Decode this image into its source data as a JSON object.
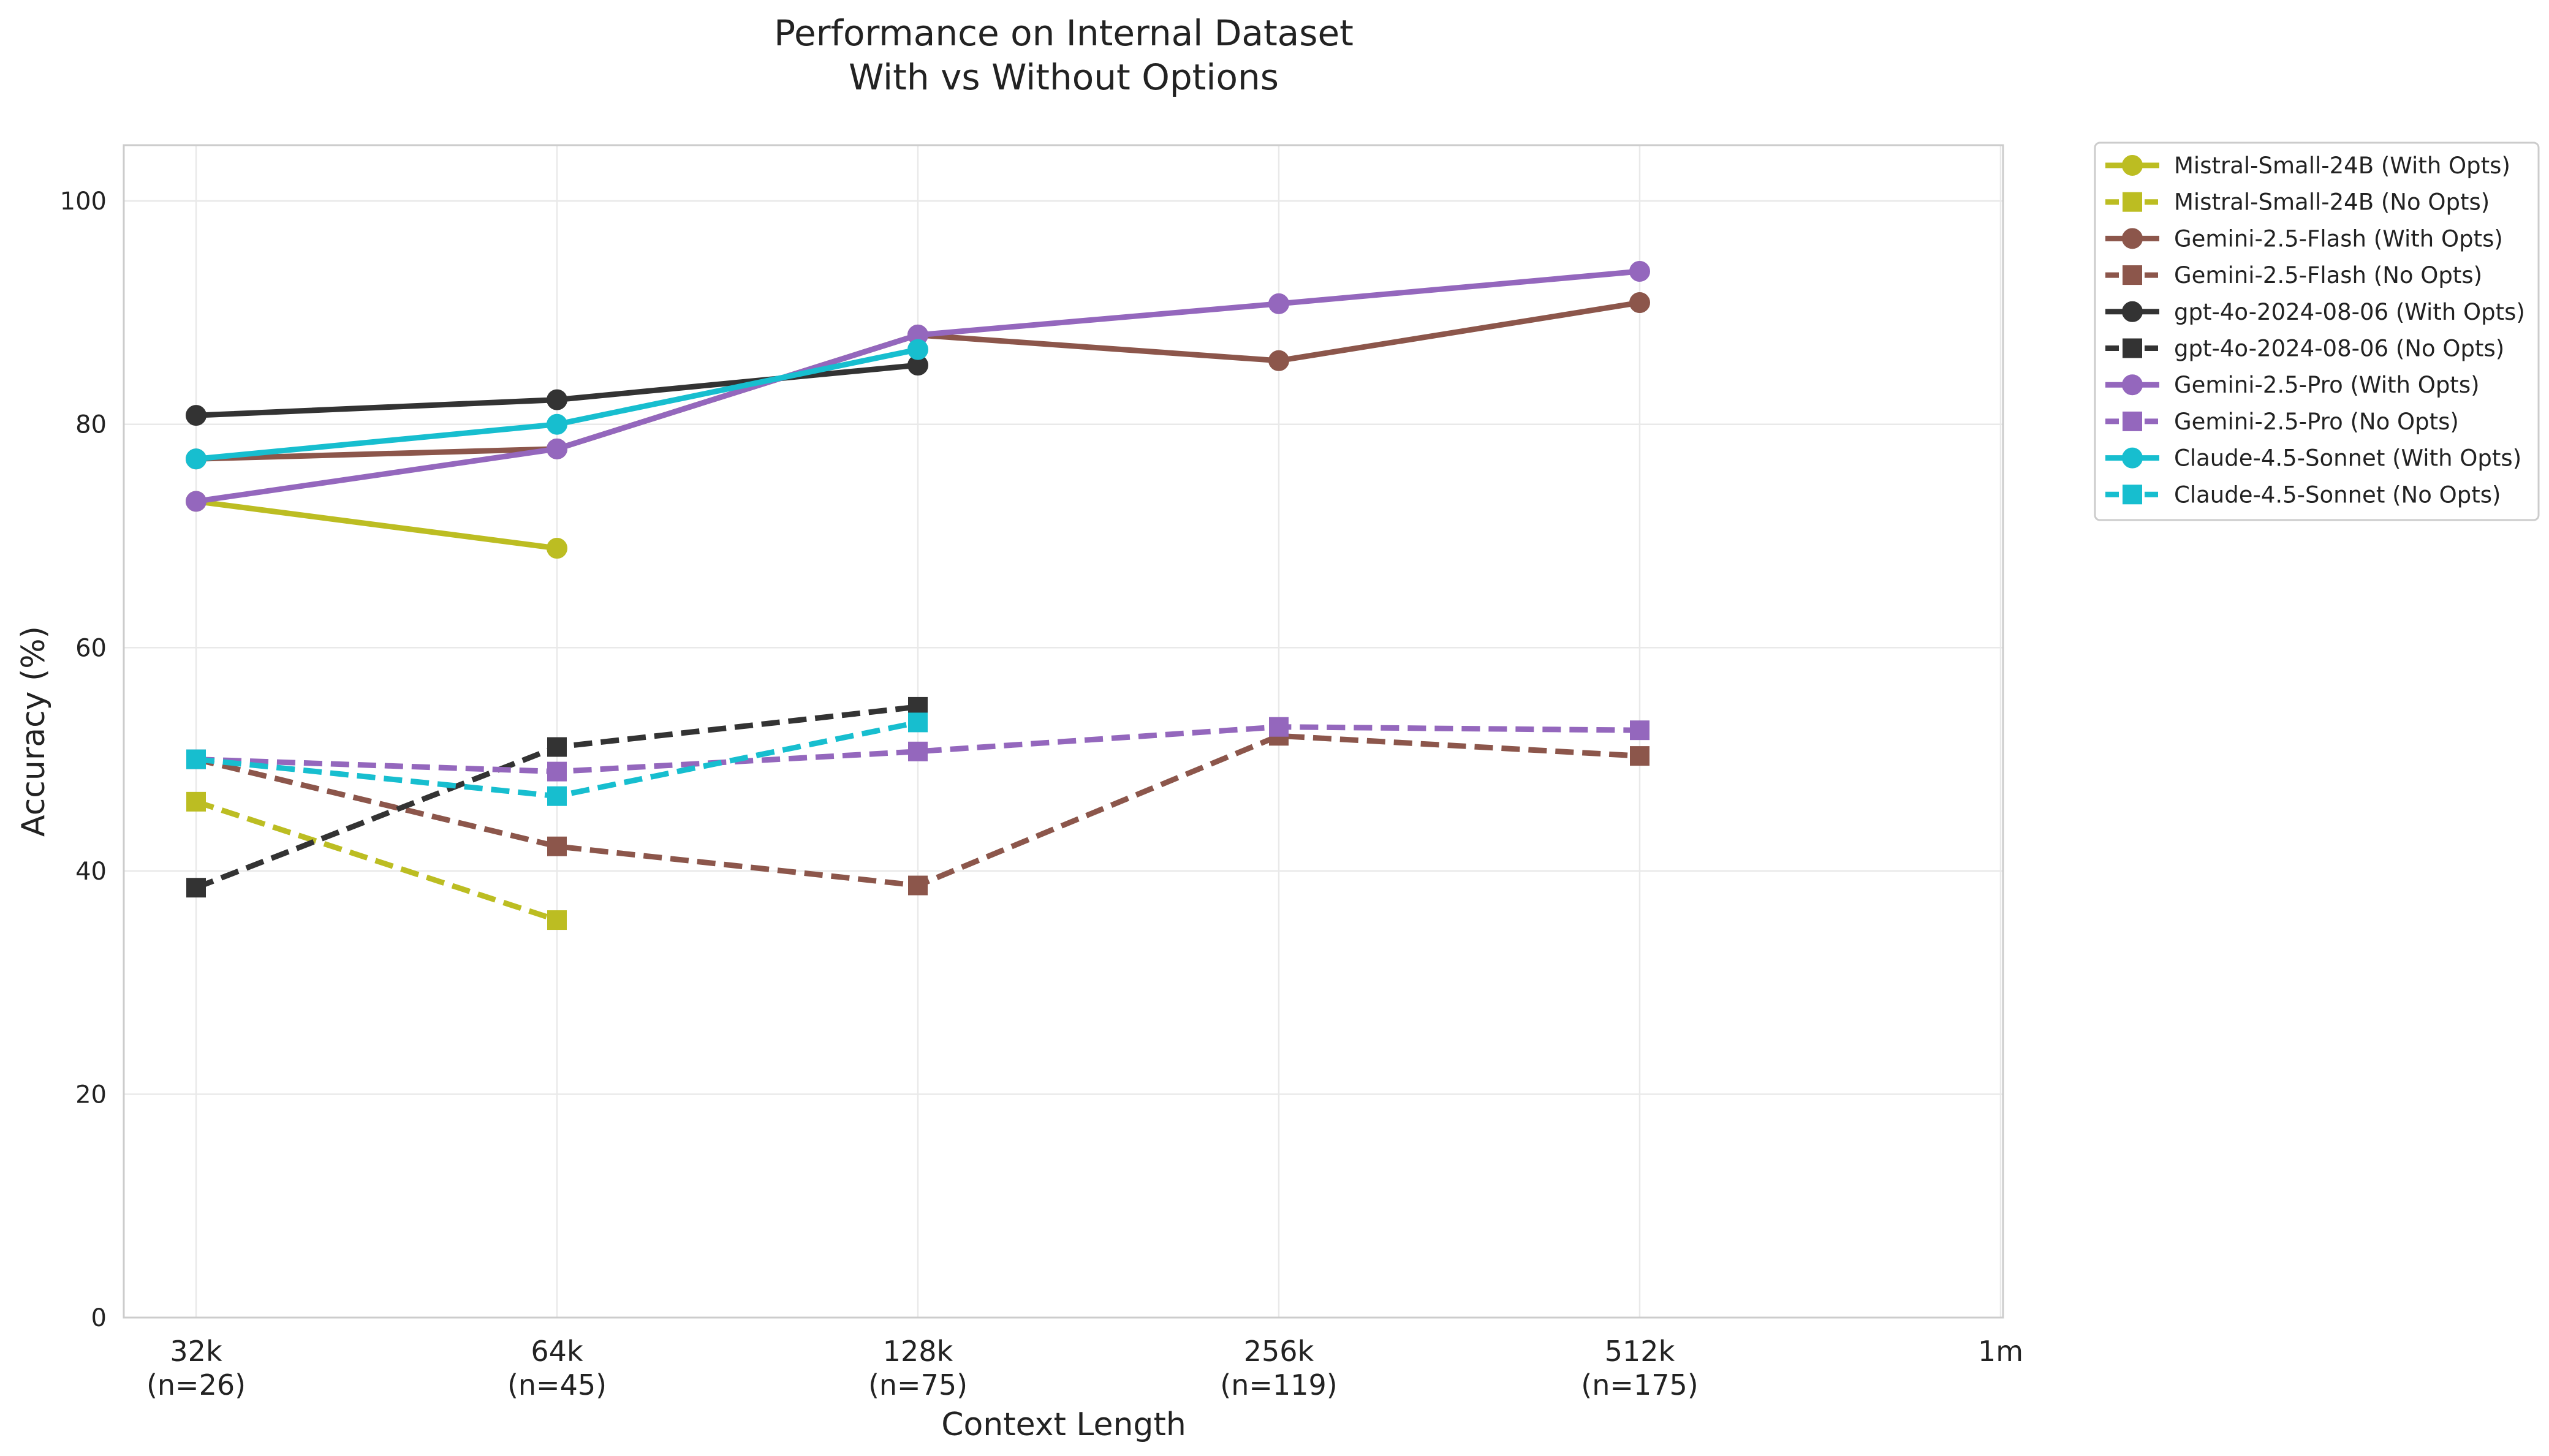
{
  "chart_data": {
    "type": "line",
    "title": [
      "Performance on Internal Dataset",
      "With vs Without Options"
    ],
    "xlabel": "Context Length",
    "ylabel": "Accuracy (%)",
    "ylim": [
      0,
      105
    ],
    "yticks": [
      0,
      20,
      40,
      60,
      80,
      100
    ],
    "grid": true,
    "legend_position": "outside-right-top",
    "categories": [
      {
        "label": "32k",
        "sub": "(n=26)"
      },
      {
        "label": "64k",
        "sub": "(n=45)"
      },
      {
        "label": "128k",
        "sub": "(n=75)"
      },
      {
        "label": "256k",
        "sub": "(n=119)"
      },
      {
        "label": "512k",
        "sub": "(n=175)"
      },
      {
        "label": "1m",
        "sub": ""
      }
    ],
    "series": [
      {
        "name": "Mistral-Small-24B (With Opts)",
        "color": "#bcbd22",
        "marker": "circle",
        "dash": false,
        "values": [
          73.1,
          68.9,
          null,
          null,
          null,
          null
        ]
      },
      {
        "name": "Mistral-Small-24B (No Opts)",
        "color": "#bcbd22",
        "marker": "square",
        "dash": true,
        "values": [
          46.2,
          35.6,
          null,
          null,
          null,
          null
        ]
      },
      {
        "name": "Gemini-2.5-Flash (With Opts)",
        "color": "#8c564b",
        "marker": "circle",
        "dash": false,
        "values": [
          76.9,
          77.8,
          88.0,
          85.7,
          90.9,
          null
        ]
      },
      {
        "name": "Gemini-2.5-Flash (No Opts)",
        "color": "#8c564b",
        "marker": "square",
        "dash": true,
        "values": [
          50.0,
          42.2,
          38.7,
          52.1,
          50.3,
          null
        ]
      },
      {
        "name": "gpt-4o-2024-08-06 (With Opts)",
        "color": "#333333",
        "marker": "circle",
        "dash": false,
        "values": [
          80.8,
          82.2,
          85.3,
          null,
          null,
          null
        ]
      },
      {
        "name": "gpt-4o-2024-08-06 (No Opts)",
        "color": "#333333",
        "marker": "square",
        "dash": true,
        "values": [
          38.5,
          51.1,
          54.7,
          null,
          null,
          null
        ]
      },
      {
        "name": "Gemini-2.5-Pro (With Opts)",
        "color": "#9467bd",
        "marker": "circle",
        "dash": false,
        "values": [
          73.1,
          77.8,
          88.0,
          90.8,
          93.7,
          null
        ]
      },
      {
        "name": "Gemini-2.5-Pro (No Opts)",
        "color": "#9467bd",
        "marker": "square",
        "dash": true,
        "values": [
          50.0,
          48.9,
          50.7,
          52.9,
          52.6,
          null
        ]
      },
      {
        "name": "Claude-4.5-Sonnet (With Opts)",
        "color": "#17becf",
        "marker": "circle",
        "dash": false,
        "values": [
          76.9,
          80.0,
          86.7,
          null,
          null,
          null
        ]
      },
      {
        "name": "Claude-4.5-Sonnet (No Opts)",
        "color": "#17becf",
        "marker": "square",
        "dash": true,
        "values": [
          50.0,
          46.7,
          53.3,
          null,
          null,
          null
        ]
      }
    ]
  }
}
